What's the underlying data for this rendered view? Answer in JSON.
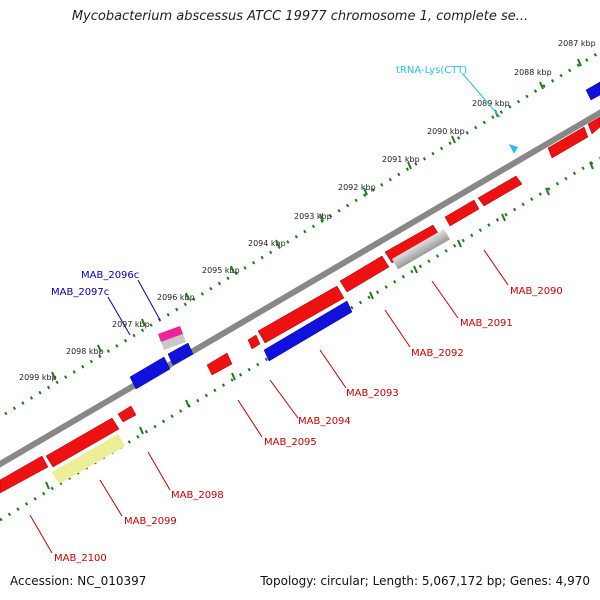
{
  "title": "Mycobacterium abscessus ATCC 19977 chromosome 1, complete se...",
  "footer": {
    "accession": "Accession: NC_010397",
    "summary": "Topology: circular; Length: 5,067,172 bp; Genes: 4,970"
  },
  "colors": {
    "backbone": "#888888",
    "tick": "#1f7a1f",
    "forward_gene": "#ee1111",
    "reverse_gene": "#1111dd",
    "pseudo_gene": "#bbbbbb",
    "pink_gene": "#ee2299",
    "yellow_gene": "#eeee99",
    "trna": "#33bbee",
    "red_label": "#cc0000",
    "blue_label": "#0000bb"
  },
  "kbp_ticks": [
    {
      "label": "2087 kbp"
    },
    {
      "label": "2088 kbp"
    },
    {
      "label": "2089 kbp"
    },
    {
      "label": "2090 kbp"
    },
    {
      "label": "2091 kbp"
    },
    {
      "label": "2092 kbp"
    },
    {
      "label": "2093 kbp"
    },
    {
      "label": "2094 kbp"
    },
    {
      "label": "2095 kbp"
    },
    {
      "label": "2096 kbp"
    },
    {
      "label": "2097 kbp"
    },
    {
      "label": "2098 kbp"
    },
    {
      "label": "2099 kbp"
    }
  ],
  "features": [
    {
      "name": "tRNA-Lys(CTT)",
      "type": "trna"
    },
    {
      "name": "MAB_2090",
      "type": "forward"
    },
    {
      "name": "MAB_2091",
      "type": "forward"
    },
    {
      "name": "MAB_2092",
      "type": "forward"
    },
    {
      "name": "MAB_2093",
      "type": "forward"
    },
    {
      "name": "MAB_2094",
      "type": "forward"
    },
    {
      "name": "MAB_2095",
      "type": "forward"
    },
    {
      "name": "MAB_2096c",
      "type": "reverse"
    },
    {
      "name": "MAB_2097c",
      "type": "reverse"
    },
    {
      "name": "MAB_2098",
      "type": "forward"
    },
    {
      "name": "MAB_2099",
      "type": "forward"
    },
    {
      "name": "MAB_2100",
      "type": "forward"
    }
  ]
}
